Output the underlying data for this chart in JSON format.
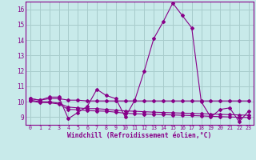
{
  "xlabel": "Windchill (Refroidissement éolien,°C)",
  "background_color": "#c8eaea",
  "grid_color": "#a8cccc",
  "line_color": "#880088",
  "xlim": [
    -0.5,
    23.5
  ],
  "ylim": [
    8.5,
    16.5
  ],
  "yticks": [
    9,
    10,
    11,
    12,
    13,
    14,
    15,
    16
  ],
  "xticks": [
    0,
    1,
    2,
    3,
    4,
    5,
    6,
    7,
    8,
    9,
    10,
    11,
    12,
    13,
    14,
    15,
    16,
    17,
    18,
    19,
    20,
    21,
    22,
    23
  ],
  "series": [
    [
      10.2,
      10.1,
      10.3,
      10.3,
      8.9,
      9.3,
      9.7,
      10.8,
      10.4,
      10.2,
      9.0,
      10.1,
      12.0,
      14.1,
      15.2,
      16.4,
      15.6,
      14.8,
      10.0,
      9.0,
      9.5,
      9.6,
      8.7,
      9.4
    ],
    [
      10.2,
      10.1,
      10.2,
      10.2,
      10.1,
      10.1,
      10.05,
      10.05,
      10.05,
      10.05,
      10.05,
      10.05,
      10.05,
      10.05,
      10.05,
      10.05,
      10.05,
      10.05,
      10.05,
      10.05,
      10.05,
      10.05,
      10.05,
      10.05
    ],
    [
      10.1,
      10.0,
      10.0,
      9.9,
      9.65,
      9.6,
      9.55,
      9.55,
      9.5,
      9.45,
      9.4,
      9.38,
      9.35,
      9.32,
      9.3,
      9.28,
      9.26,
      9.24,
      9.22,
      9.2,
      9.18,
      9.16,
      9.14,
      9.12
    ],
    [
      10.05,
      9.95,
      9.93,
      9.85,
      9.5,
      9.48,
      9.42,
      9.4,
      9.38,
      9.32,
      9.25,
      9.22,
      9.2,
      9.18,
      9.16,
      9.14,
      9.12,
      9.1,
      9.08,
      9.05,
      9.03,
      9.01,
      8.99,
      8.97
    ]
  ]
}
